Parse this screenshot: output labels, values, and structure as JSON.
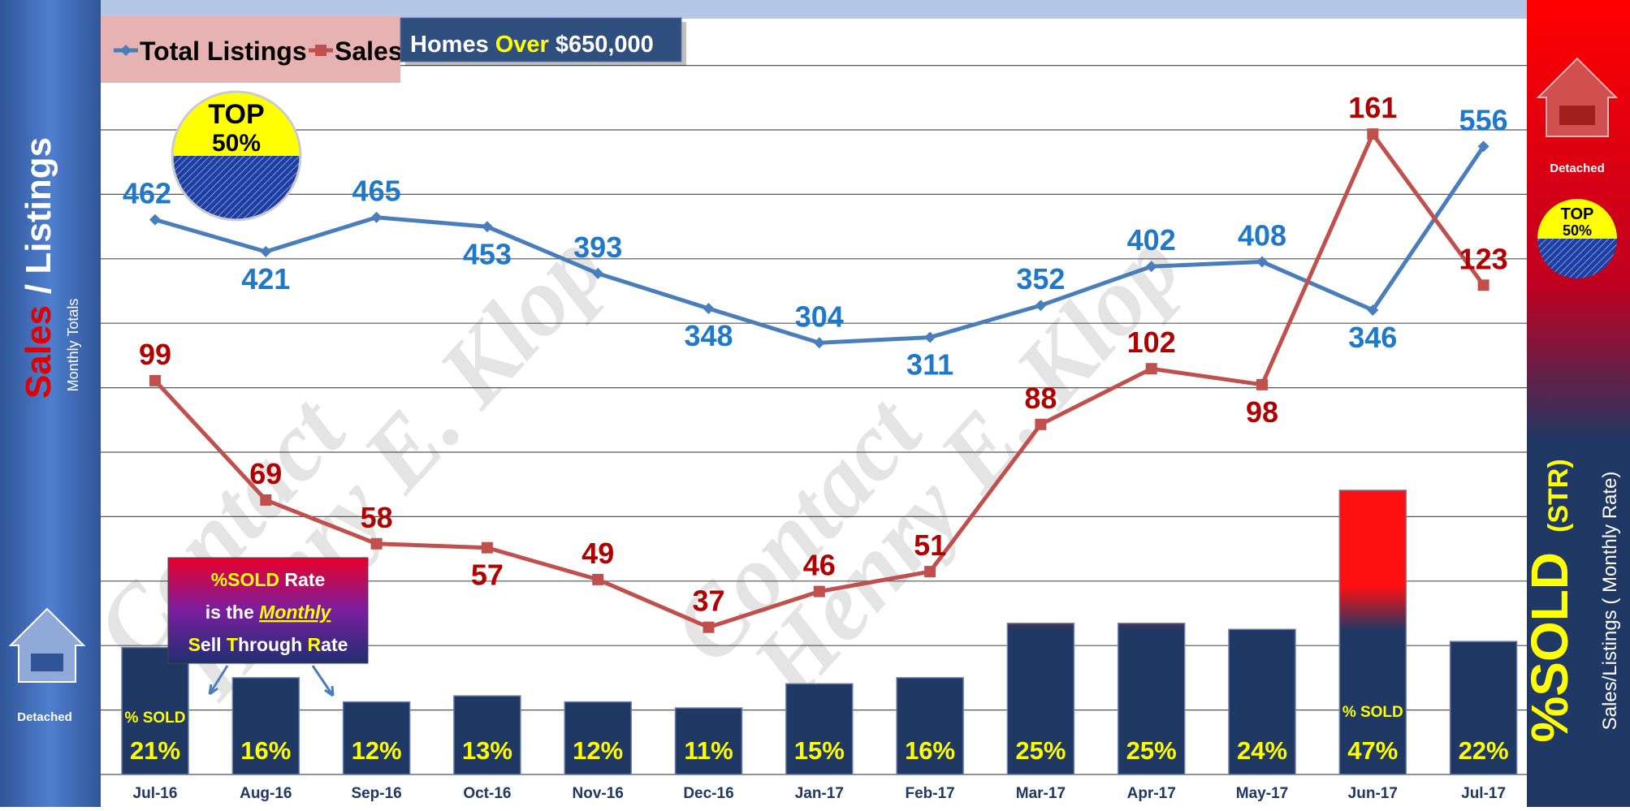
{
  "chart_data": [
    {
      "type": "line",
      "categories": [
        "Jul-16",
        "Aug-16",
        "Sep-16",
        "Oct-16",
        "Nov-16",
        "Dec-16",
        "Jan-17",
        "Feb-17",
        "Mar-17",
        "Apr-17",
        "May-17",
        "Jun-17",
        "Jul-17"
      ],
      "series": [
        {
          "name": "Total Listings",
          "color": "#4a7ebb",
          "label_color": "#1f78c8",
          "values": [
            462,
            421,
            465,
            453,
            393,
            348,
            304,
            311,
            352,
            402,
            408,
            346,
            556
          ]
        },
        {
          "name": "Sales",
          "color": "#c0504d",
          "label_color": "#b00000",
          "values": [
            99,
            69,
            58,
            57,
            49,
            37,
            46,
            51,
            88,
            102,
            98,
            161,
            123
          ],
          "axis": "y2"
        }
      ],
      "ylim": [
        -250,
        720
      ],
      "y2lim": [
        0,
        190
      ],
      "subtitle_parts": [
        "Homes",
        "Over",
        "$650,000"
      ]
    },
    {
      "type": "bar",
      "values": [
        21,
        16,
        12,
        13,
        12,
        11,
        15,
        16,
        25,
        25,
        24,
        47,
        22
      ],
      "value_labels": [
        "21%",
        "16%",
        "12%",
        "13%",
        "12%",
        "11%",
        "15%",
        "16%",
        "25%",
        "25%",
        "24%",
        "47%",
        "22%"
      ],
      "color": "#1f3864",
      "top_color": "#ff1010",
      "ylim": [
        0,
        125
      ],
      "note": "% SOLD"
    }
  ],
  "badge": [
    "TOP",
    "50%"
  ],
  "left_panel": {
    "title_parts": [
      "Sales",
      "/ Listings"
    ],
    "subtitle": "Monthly Totals",
    "house_label": "Detached"
  },
  "right_panel": {
    "house_label": "Detached",
    "title_parts": [
      "%SOLD",
      "(STR)"
    ],
    "subtitle": "Sales/Listings ( Monthly Rate)"
  },
  "callout": [
    [
      "%SOLD",
      " Rate"
    ],
    [
      "is the ",
      "Monthly"
    ],
    [
      "S",
      "ell ",
      "T",
      "hrough ",
      "R",
      "ate"
    ]
  ],
  "watermark": [
    "Contact",
    "Henry E. Klop"
  ]
}
